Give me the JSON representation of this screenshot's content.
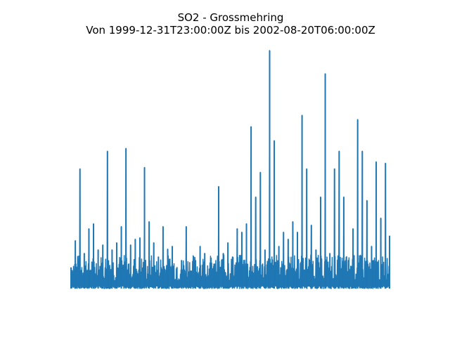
{
  "chart_data": {
    "type": "line",
    "title": "SO2 - Grossmehring",
    "subtitle": "Von 1999-12-31T23:00:00Z bis 2002-08-20T06:00:00Z",
    "xlabel": "",
    "ylabel": "",
    "axes_visible": false,
    "grid": false,
    "legend": "none",
    "color": "#1f77b4",
    "x_range": [
      "1999-12-31T23:00:00Z",
      "2002-08-20T06:00:00Z"
    ],
    "series": [
      {
        "x": [
          "1999-12-31T23:00:00Z",
          "2000-01-14",
          "2000-01-28",
          "2000-02-10",
          "2000-02-24",
          "2000-03-09",
          "2000-03-23",
          "2000-04-06",
          "2000-04-20",
          "2000-05-04",
          "2000-05-18",
          "2000-06-01",
          "2000-06-15",
          "2000-06-29",
          "2000-07-13",
          "2000-07-27",
          "2000-08-10",
          "2000-08-24",
          "2000-09-07",
          "2000-09-21",
          "2000-10-05",
          "2000-10-19",
          "2000-11-02",
          "2000-11-16",
          "2000-11-30",
          "2000-12-14",
          "2000-12-28",
          "2001-01-11",
          "2001-01-25",
          "2001-02-08",
          "2001-02-22",
          "2001-03-08",
          "2001-03-22",
          "2001-04-05",
          "2001-04-19",
          "2001-05-03",
          "2001-05-17",
          "2001-05-31",
          "2001-06-14",
          "2001-06-28",
          "2001-07-12",
          "2001-07-26",
          "2001-08-09",
          "2001-08-23",
          "2001-09-06",
          "2001-09-20",
          "2001-10-04",
          "2001-10-18",
          "2001-11-01",
          "2001-11-15",
          "2001-11-29",
          "2001-12-13",
          "2001-12-27",
          "2002-01-10",
          "2002-01-24",
          "2002-02-07",
          "2002-02-21",
          "2002-03-07",
          "2002-03-21",
          "2002-04-04",
          "2002-04-18",
          "2002-05-02",
          "2002-05-16",
          "2002-05-30",
          "2002-06-13",
          "2002-06-27",
          "2002-07-11",
          "2002-07-25",
          "2002-08-08",
          "2002-08-20T06:00:00Z"
        ],
        "y": [
          30,
          68,
          170,
          50,
          85,
          92,
          55,
          62,
          195,
          55,
          65,
          88,
          199,
          62,
          70,
          72,
          172,
          95,
          65,
          45,
          88,
          56,
          60,
          30,
          40,
          88,
          25,
          40,
          60,
          50,
          28,
          35,
          145,
          50,
          65,
          45,
          85,
          80,
          92,
          230,
          130,
          165,
          55,
          338,
          210,
          60,
          80,
          70,
          95,
          80,
          246,
          170,
          90,
          55,
          130,
          305,
          50,
          170,
          195,
          130,
          40,
          85,
          240,
          195,
          125,
          60,
          180,
          100,
          178,
          75
        ]
      }
    ]
  }
}
